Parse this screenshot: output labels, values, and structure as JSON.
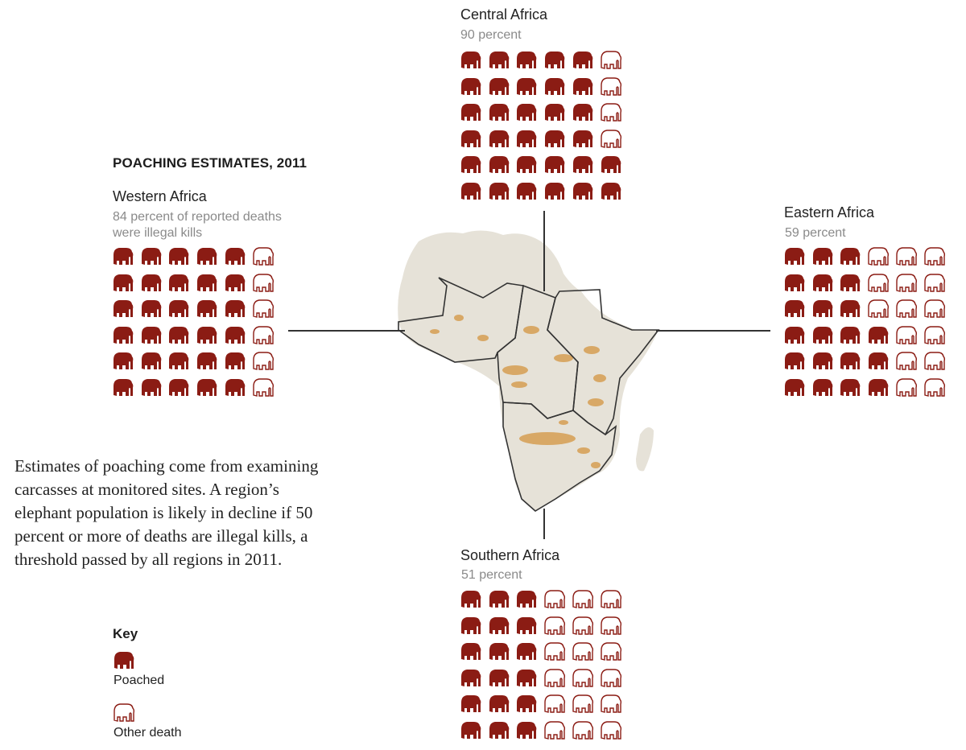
{
  "title": "POACHING ESTIMATES, 2011",
  "colors": {
    "poached": "#8b1c14",
    "other": "#8b1c14",
    "land": "#e6e2d8",
    "range": "#d8a866",
    "border": "#333333"
  },
  "regions": {
    "central": {
      "name": "Central Africa",
      "pct_text": "90 percent",
      "poached_fraction": 0.9
    },
    "western": {
      "name": "Western Africa",
      "pct_text": "84 percent of reported deaths were illegal kills",
      "poached_fraction": 0.84
    },
    "eastern": {
      "name": "Eastern Africa",
      "pct_text": "59 percent",
      "poached_fraction": 0.59
    },
    "southern": {
      "name": "Southern Africa",
      "pct_text": "51 percent",
      "poached_fraction": 0.51
    }
  },
  "note": "Estimates of poaching come from examining carcasses at monitored sites. A region’s elephant population is likely in decline if 50 percent or more of deaths are illegal kills, a threshold passed by all regions in 2011.",
  "key": {
    "title": "Key",
    "poached": "Poached",
    "other": "Other death"
  }
}
